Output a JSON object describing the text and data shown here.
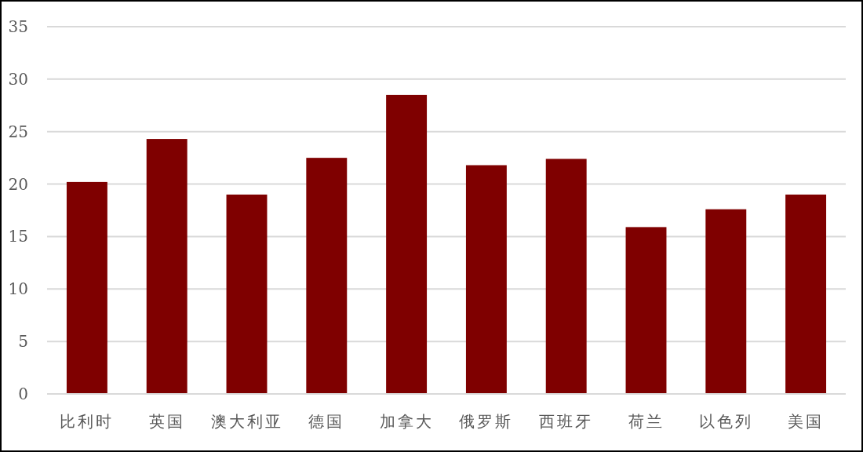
{
  "chart_data": {
    "type": "bar",
    "categories": [
      "比利时",
      "英国",
      "澳大利亚",
      "德国",
      "加拿大",
      "俄罗斯",
      "西班牙",
      "荷兰",
      "以色列",
      "美国"
    ],
    "values": [
      20.2,
      24.3,
      19.0,
      22.5,
      28.5,
      21.8,
      22.4,
      15.9,
      17.6,
      19.0
    ],
    "color": "#7f0000",
    "ylim": [
      0,
      35
    ],
    "yticks": [
      0,
      5,
      10,
      15,
      20,
      25,
      30,
      35
    ],
    "grid": "y"
  }
}
